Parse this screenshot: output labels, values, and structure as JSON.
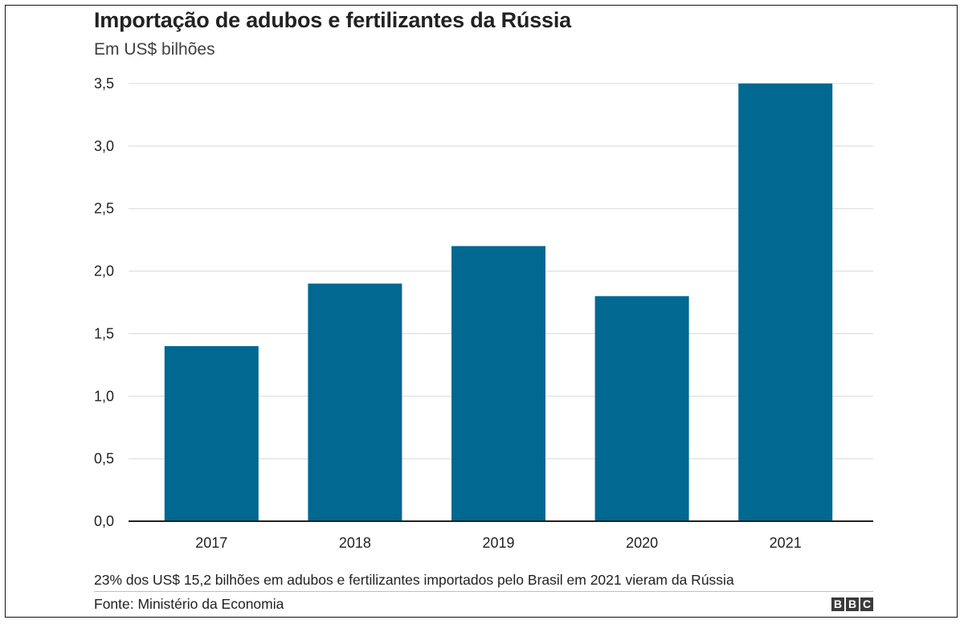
{
  "header": {
    "title": "Importação de adubos e fertilizantes da Rússia",
    "subtitle": "Em US$ bilhões"
  },
  "footer": {
    "note": "23% dos US$ 15,2 bilhões em adubos e fertilizantes importados pelo Brasil em 2021 vieram da Rússia",
    "source": "Fonte: Ministério da Economia",
    "logo": [
      "B",
      "B",
      "C"
    ]
  },
  "colors": {
    "bar": "#006891",
    "grid": "#d8d8d8",
    "axis": "#222222"
  },
  "chart_data": {
    "type": "bar",
    "title": "Importação de adubos e fertilizantes da Rússia",
    "subtitle": "Em US$ bilhões",
    "categories": [
      "2017",
      "2018",
      "2019",
      "2020",
      "2021"
    ],
    "values": [
      1.4,
      1.9,
      2.2,
      1.8,
      3.5
    ],
    "ylim": [
      0,
      3.5
    ],
    "yticks": [
      0,
      0.5,
      1,
      1.5,
      2,
      2.5,
      3,
      3.5
    ],
    "ytick_labels": [
      "0,0",
      "0,5",
      "1,0",
      "1,5",
      "2,0",
      "2,5",
      "3,0",
      "3,5"
    ],
    "grid": true,
    "legend": "none"
  }
}
